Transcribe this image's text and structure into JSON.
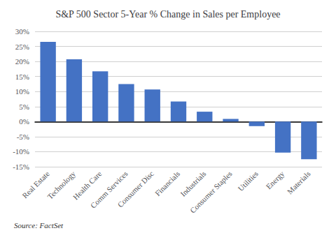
{
  "chart_data": {
    "type": "bar",
    "title": "S&P 500 Sector 5-Year % Change in Sales per Employee",
    "annotations": [
      "Source: FactSet"
    ],
    "categories": [
      "Real Estate",
      "Technology",
      "Health Care",
      "Comm Services",
      "Consumer Disc",
      "Financials",
      "Industrials",
      "Consumer Staples",
      "Utilities",
      "Energy",
      "Materials"
    ],
    "values": [
      26.5,
      20.7,
      16.7,
      12.5,
      10.7,
      6.7,
      3.3,
      0.9,
      -1.5,
      -10.3,
      -12.5
    ],
    "color": "#4472C4",
    "ylim": [
      -15,
      30
    ],
    "yticks": [
      {
        "value": -15,
        "label": "-15%"
      },
      {
        "value": -10,
        "label": "-10%"
      },
      {
        "value": -5,
        "label": "-5%"
      },
      {
        "value": 0,
        "label": "0%"
      },
      {
        "value": 5,
        "label": "5%"
      },
      {
        "value": 10,
        "label": "10%"
      },
      {
        "value": 15,
        "label": "15%"
      },
      {
        "value": 20,
        "label": "20%"
      },
      {
        "value": 25,
        "label": "25%"
      },
      {
        "value": 30,
        "label": "30%"
      }
    ],
    "grid": true
  }
}
